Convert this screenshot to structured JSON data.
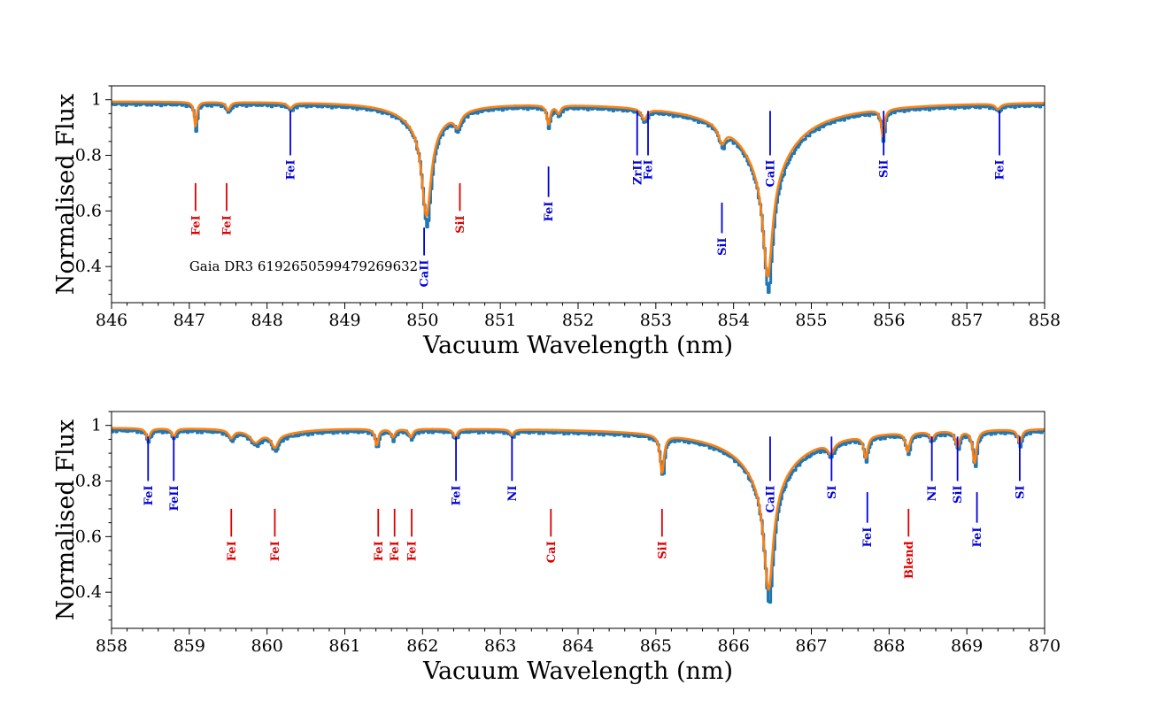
{
  "chart_data": [
    {
      "type": "line",
      "name": "panel-top",
      "xlabel": "Vacuum Wavelength (nm)",
      "ylabel": "Normalised Flux",
      "xlim": [
        846,
        858
      ],
      "ylim": [
        0.27,
        1.05
      ],
      "xticks": [
        846,
        847,
        848,
        849,
        850,
        851,
        852,
        853,
        854,
        855,
        856,
        857,
        858
      ],
      "yticks": [
        0.4,
        0.6,
        0.8,
        1.0
      ],
      "annotation": "Gaia DR3 6192650599479269632",
      "series_colors": {
        "observed": "#1f77b4",
        "model": "#ff7f0e"
      },
      "continuum": 0.993,
      "features": [
        {
          "center": 847.08,
          "depth": 0.09,
          "width": 0.02
        },
        {
          "center": 847.5,
          "depth": 0.03,
          "width": 0.03
        },
        {
          "center": 848.3,
          "depth": 0.02,
          "width": 0.04
        },
        {
          "center": 850.05,
          "depth": 0.34,
          "width": 0.07
        },
        {
          "center": 850.05,
          "depth": 0.08,
          "width": 0.35
        },
        {
          "center": 850.45,
          "depth": 0.05,
          "width": 0.05
        },
        {
          "center": 851.62,
          "depth": 0.07,
          "width": 0.025
        },
        {
          "center": 851.75,
          "depth": 0.03,
          "width": 0.03
        },
        {
          "center": 852.85,
          "depth": 0.04,
          "width": 0.04
        },
        {
          "center": 853.85,
          "depth": 0.06,
          "width": 0.05
        },
        {
          "center": 854.44,
          "depth": 0.4,
          "width": 0.07
        },
        {
          "center": 854.44,
          "depth": 0.2,
          "width": 0.35
        },
        {
          "center": 854.44,
          "depth": 0.05,
          "width": 1.1
        },
        {
          "center": 855.92,
          "depth": 0.1,
          "width": 0.025
        },
        {
          "center": 857.4,
          "depth": 0.02,
          "width": 0.04
        }
      ],
      "lines": [
        {
          "label": "FeI",
          "x": 847.08,
          "color": "#dd0000",
          "y_top": 0.7,
          "y_bottom": 0.6
        },
        {
          "label": "FeI",
          "x": 847.48,
          "color": "#dd0000",
          "y_top": 0.7,
          "y_bottom": 0.6
        },
        {
          "label": "FeI",
          "x": 848.3,
          "color": "#0000dd",
          "y_top": 0.96,
          "y_bottom": 0.8
        },
        {
          "label": "CaII",
          "x": 850.02,
          "color": "#0000dd",
          "y_top": 0.54,
          "y_bottom": 0.44
        },
        {
          "label": "SiI",
          "x": 850.48,
          "color": "#dd0000",
          "y_top": 0.7,
          "y_bottom": 0.6
        },
        {
          "label": "FeI",
          "x": 851.62,
          "color": "#0000dd",
          "y_top": 0.76,
          "y_bottom": 0.65
        },
        {
          "label": "ZrII",
          "x": 852.76,
          "color": "#0000dd",
          "y_top": 0.96,
          "y_bottom": 0.8
        },
        {
          "label": "FeI",
          "x": 852.9,
          "color": "#0000dd",
          "y_top": 0.96,
          "y_bottom": 0.8
        },
        {
          "label": "SiI",
          "x": 853.85,
          "color": "#0000dd",
          "y_top": 0.63,
          "y_bottom": 0.52
        },
        {
          "label": "CaII",
          "x": 854.47,
          "color": "#0000dd",
          "y_top": 0.96,
          "y_bottom": 0.8
        },
        {
          "label": "SiI",
          "x": 855.93,
          "color": "#0000dd",
          "y_top": 0.96,
          "y_bottom": 0.8
        },
        {
          "label": "FeI",
          "x": 857.42,
          "color": "#0000dd",
          "y_top": 0.96,
          "y_bottom": 0.8
        }
      ]
    },
    {
      "type": "line",
      "name": "panel-bottom",
      "xlabel": "Vacuum Wavelength (nm)",
      "ylabel": "Normalised Flux",
      "xlim": [
        858,
        870
      ],
      "ylim": [
        0.27,
        1.05
      ],
      "xticks": [
        858,
        859,
        860,
        861,
        862,
        863,
        864,
        865,
        866,
        867,
        868,
        869,
        870
      ],
      "yticks": [
        0.4,
        0.6,
        0.8,
        1.0
      ],
      "series_colors": {
        "observed": "#1f77b4",
        "model": "#ff7f0e"
      },
      "continuum": 0.99,
      "features": [
        {
          "center": 858.47,
          "depth": 0.04,
          "width": 0.03
        },
        {
          "center": 858.8,
          "depth": 0.03,
          "width": 0.03
        },
        {
          "center": 859.54,
          "depth": 0.03,
          "width": 0.04
        },
        {
          "center": 859.85,
          "depth": 0.04,
          "width": 0.08
        },
        {
          "center": 860.1,
          "depth": 0.05,
          "width": 0.05
        },
        {
          "center": 860.15,
          "depth": 0.02,
          "width": 0.35
        },
        {
          "center": 861.41,
          "depth": 0.06,
          "width": 0.025
        },
        {
          "center": 861.62,
          "depth": 0.03,
          "width": 0.03
        },
        {
          "center": 861.85,
          "depth": 0.03,
          "width": 0.03
        },
        {
          "center": 862.42,
          "depth": 0.03,
          "width": 0.03
        },
        {
          "center": 863.15,
          "depth": 0.02,
          "width": 0.03
        },
        {
          "center": 865.08,
          "depth": 0.14,
          "width": 0.03
        },
        {
          "center": 866.45,
          "depth": 0.4,
          "width": 0.07
        },
        {
          "center": 866.45,
          "depth": 0.15,
          "width": 0.33
        },
        {
          "center": 866.45,
          "depth": 0.05,
          "width": 1.0
        },
        {
          "center": 867.25,
          "depth": 0.04,
          "width": 0.05
        },
        {
          "center": 867.7,
          "depth": 0.08,
          "width": 0.03
        },
        {
          "center": 868.24,
          "depth": 0.07,
          "width": 0.03
        },
        {
          "center": 868.55,
          "depth": 0.03,
          "width": 0.03
        },
        {
          "center": 868.88,
          "depth": 0.06,
          "width": 0.03
        },
        {
          "center": 869.1,
          "depth": 0.12,
          "width": 0.03
        },
        {
          "center": 869.68,
          "depth": 0.05,
          "width": 0.03
        }
      ],
      "lines": [
        {
          "label": "FeI",
          "x": 858.47,
          "color": "#0000dd",
          "y_top": 0.96,
          "y_bottom": 0.8
        },
        {
          "label": "FeII",
          "x": 858.8,
          "color": "#0000dd",
          "y_top": 0.96,
          "y_bottom": 0.8
        },
        {
          "label": "FeI",
          "x": 859.54,
          "color": "#dd0000",
          "y_top": 0.7,
          "y_bottom": 0.6
        },
        {
          "label": "FeI",
          "x": 860.1,
          "color": "#dd0000",
          "y_top": 0.7,
          "y_bottom": 0.6
        },
        {
          "label": "FeI",
          "x": 861.43,
          "color": "#dd0000",
          "y_top": 0.7,
          "y_bottom": 0.6
        },
        {
          "label": "FeI",
          "x": 861.64,
          "color": "#dd0000",
          "y_top": 0.7,
          "y_bottom": 0.6
        },
        {
          "label": "FeI",
          "x": 861.86,
          "color": "#dd0000",
          "y_top": 0.7,
          "y_bottom": 0.6
        },
        {
          "label": "FeI",
          "x": 862.43,
          "color": "#0000dd",
          "y_top": 0.96,
          "y_bottom": 0.8
        },
        {
          "label": "NI",
          "x": 863.15,
          "color": "#0000dd",
          "y_top": 0.96,
          "y_bottom": 0.8
        },
        {
          "label": "CaI",
          "x": 863.65,
          "color": "#dd0000",
          "y_top": 0.7,
          "y_bottom": 0.6
        },
        {
          "label": "SiI",
          "x": 865.08,
          "color": "#dd0000",
          "y_top": 0.7,
          "y_bottom": 0.6
        },
        {
          "label": "CaII",
          "x": 866.47,
          "color": "#0000dd",
          "y_top": 0.96,
          "y_bottom": 0.8
        },
        {
          "label": "SI",
          "x": 867.26,
          "color": "#0000dd",
          "y_top": 0.96,
          "y_bottom": 0.8
        },
        {
          "label": "FeI",
          "x": 867.72,
          "color": "#0000dd",
          "y_top": 0.76,
          "y_bottom": 0.65
        },
        {
          "label": "Blend",
          "x": 868.25,
          "color": "#dd0000",
          "y_top": 0.7,
          "y_bottom": 0.6
        },
        {
          "label": "NI",
          "x": 868.55,
          "color": "#0000dd",
          "y_top": 0.96,
          "y_bottom": 0.8
        },
        {
          "label": "SiI",
          "x": 868.88,
          "color": "#0000dd",
          "y_top": 0.96,
          "y_bottom": 0.8
        },
        {
          "label": "FeI",
          "x": 869.13,
          "color": "#0000dd",
          "y_top": 0.76,
          "y_bottom": 0.65
        },
        {
          "label": "SI",
          "x": 869.68,
          "color": "#0000dd",
          "y_top": 0.96,
          "y_bottom": 0.8
        }
      ]
    }
  ]
}
